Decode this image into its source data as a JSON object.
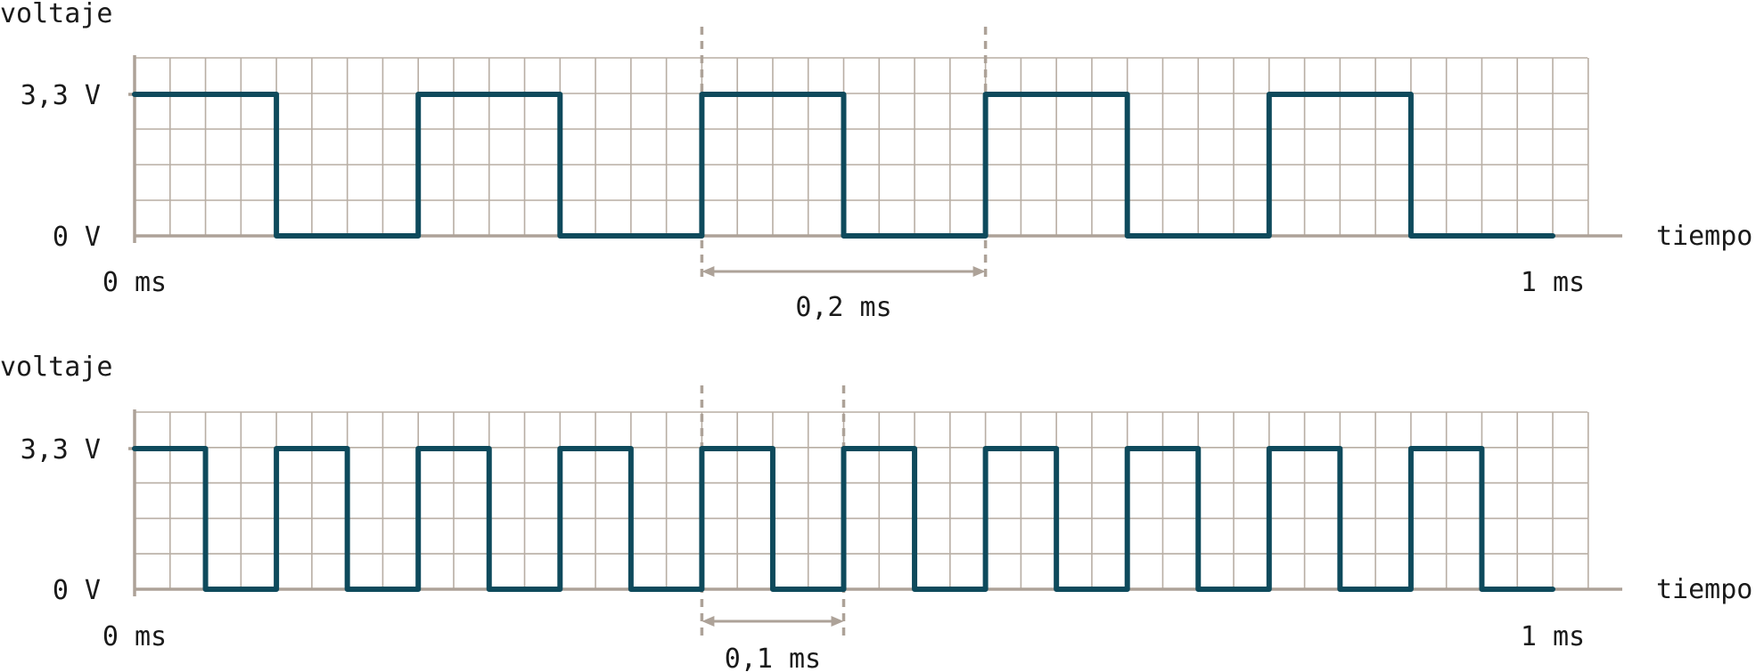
{
  "colors": {
    "wave": "#0e4a5c",
    "grid": "#b8aea4",
    "axis": "#ada298"
  },
  "chart_data": [
    {
      "type": "line",
      "step": true,
      "xlabel": "tiempo",
      "ylabel": "voltaje",
      "x_unit": "ms",
      "xlim": [
        0,
        1
      ],
      "ylim": [
        0,
        3.3
      ],
      "x_tick_labels": [
        "0 ms",
        "1 ms"
      ],
      "y_tick_labels": [
        "0 V",
        "3,3 V"
      ],
      "grid": true,
      "period_ms": 0.2,
      "series": [
        {
          "x": [
            0,
            0.1,
            0.2,
            0.3,
            0.4,
            0.5,
            0.6,
            0.7,
            0.8,
            0.9,
            1.0
          ],
          "y": [
            3.3,
            0,
            3.3,
            0,
            3.3,
            0,
            3.3,
            0,
            3.3,
            0,
            0
          ]
        }
      ],
      "annotation": {
        "from": 0.4,
        "to": 0.6,
        "text": "0,2 ms"
      }
    },
    {
      "type": "line",
      "step": true,
      "xlabel": "tiempo",
      "ylabel": "voltaje",
      "x_unit": "ms",
      "xlim": [
        0,
        1
      ],
      "ylim": [
        0,
        3.3
      ],
      "x_tick_labels": [
        "0 ms",
        "1 ms"
      ],
      "y_tick_labels": [
        "0 V",
        "3,3 V"
      ],
      "grid": true,
      "period_ms": 0.1,
      "series": [
        {
          "x": [
            0,
            0.05,
            0.1,
            0.15,
            0.2,
            0.25,
            0.3,
            0.35,
            0.4,
            0.45,
            0.5,
            0.55,
            0.6,
            0.65,
            0.7,
            0.75,
            0.8,
            0.85,
            0.9,
            0.95,
            1.0
          ],
          "y": [
            3.3,
            0,
            3.3,
            0,
            3.3,
            0,
            3.3,
            0,
            3.3,
            0,
            3.3,
            0,
            3.3,
            0,
            3.3,
            0,
            3.3,
            0,
            3.3,
            0,
            0
          ]
        }
      ],
      "annotation": {
        "from": 0.4,
        "to": 0.5,
        "text": "0,1 ms"
      }
    }
  ]
}
